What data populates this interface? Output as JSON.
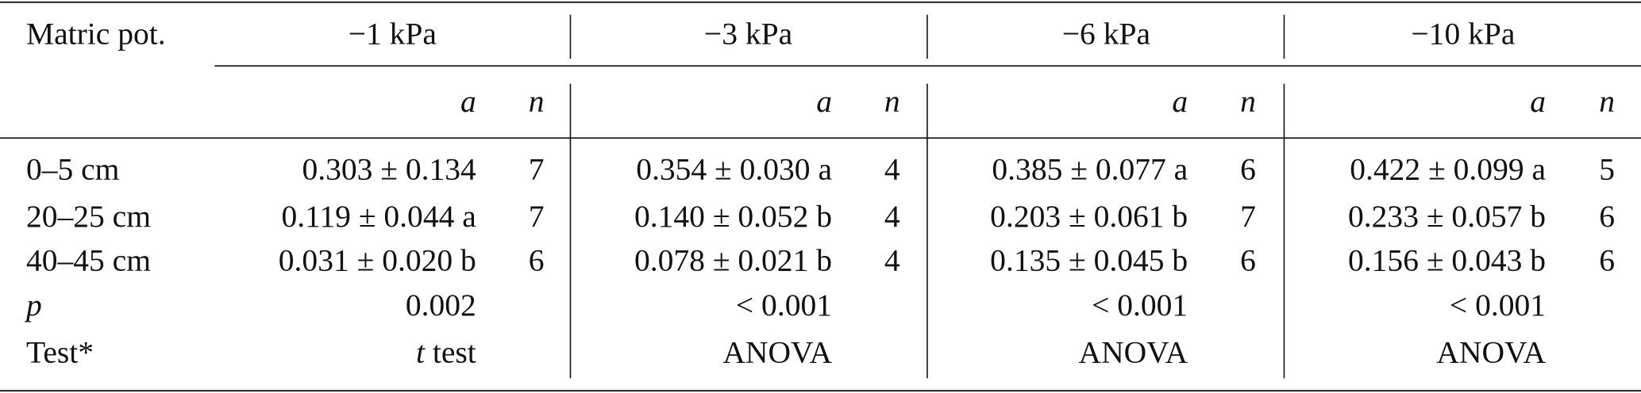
{
  "table": {
    "row_header": "Matric pot.",
    "groups": [
      {
        "title": "−1 kPa",
        "a": "a",
        "n": "n"
      },
      {
        "title": "−3 kPa",
        "a": "a",
        "n": "n"
      },
      {
        "title": "−6 kPa",
        "a": "a",
        "n": "n"
      },
      {
        "title": "−10 kPa",
        "a": "a",
        "n": "n"
      }
    ],
    "rows": [
      {
        "label": "0–5 cm",
        "cells": [
          [
            "0.303 ± 0.134",
            7
          ],
          [
            "0.354 ± 0.030 a",
            4
          ],
          [
            "0.385 ± 0.077 a",
            6
          ],
          [
            "0.422 ± 0.099 a",
            5
          ]
        ]
      },
      {
        "label": "20–25 cm",
        "cells": [
          [
            "0.119 ± 0.044 a",
            7
          ],
          [
            "0.140 ± 0.052 b",
            4
          ],
          [
            "0.203 ± 0.061 b",
            7
          ],
          [
            "0.233 ± 0.057 b",
            6
          ]
        ]
      },
      {
        "label": "40–45 cm",
        "cells": [
          [
            "0.031 ± 0.020 b",
            6
          ],
          [
            "0.078 ± 0.021 b",
            4
          ],
          [
            "0.135 ± 0.045 b",
            6
          ],
          [
            "0.156 ± 0.043 b",
            6
          ]
        ]
      }
    ],
    "p_row": {
      "label": "p",
      "values": [
        "0.002",
        "< 0.001",
        "< 0.001",
        "< 0.001"
      ]
    },
    "test_row": {
      "label": "Test*",
      "values": [
        [
          "t",
          " test"
        ],
        [
          "ANOVA"
        ],
        [
          "ANOVA"
        ],
        [
          "ANOVA"
        ]
      ]
    }
  }
}
